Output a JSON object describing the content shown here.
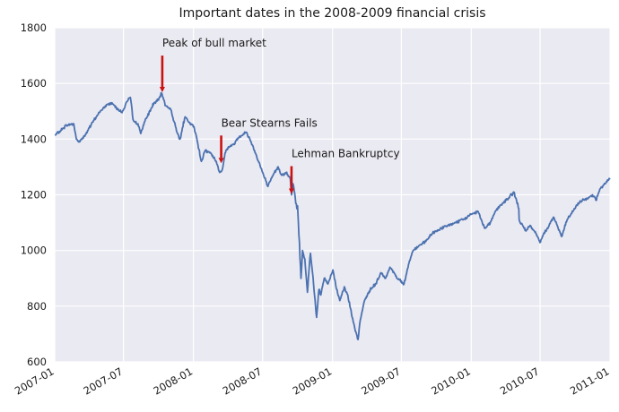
{
  "chart_data": {
    "type": "line",
    "title": "Important dates in the 2008-2009 financial crisis",
    "xlabel": "",
    "ylabel": "",
    "xlim": [
      "2007-01-01",
      "2011-01-01"
    ],
    "ylim": [
      600,
      1800
    ],
    "grid": true,
    "x_ticks": [
      "2007-01",
      "2007-07",
      "2008-01",
      "2008-07",
      "2009-01",
      "2009-07",
      "2010-01",
      "2010-07",
      "2011-01"
    ],
    "y_ticks": [
      600,
      800,
      1000,
      1200,
      1400,
      1600,
      1800
    ],
    "colors": {
      "background": "#EAEAF2",
      "line": "#4C72B0",
      "arrow": "#CC1111",
      "grid": "#FFFFFF"
    },
    "series": [
      {
        "x": [
          "2007-01-03",
          "2007-01-16",
          "2007-02-01",
          "2007-02-20",
          "2007-02-27",
          "2007-03-05",
          "2007-03-20",
          "2007-04-02",
          "2007-04-20",
          "2007-05-01",
          "2007-05-20",
          "2007-06-01",
          "2007-06-15",
          "2007-06-27",
          "2007-07-10",
          "2007-07-19",
          "2007-07-26",
          "2007-08-01",
          "2007-08-08",
          "2007-08-15",
          "2007-08-22",
          "2007-09-01",
          "2007-09-19",
          "2007-10-01",
          "2007-10-09",
          "2007-10-20",
          "2007-11-01",
          "2007-11-12",
          "2007-11-20",
          "2007-11-26",
          "2007-12-10",
          "2007-12-20",
          "2008-01-02",
          "2008-01-10",
          "2008-01-22",
          "2008-02-01",
          "2008-02-15",
          "2008-03-01",
          "2008-03-10",
          "2008-03-17",
          "2008-03-24",
          "2008-04-01",
          "2008-04-15",
          "2008-05-01",
          "2008-05-19",
          "2008-06-01",
          "2008-06-15",
          "2008-07-01",
          "2008-07-15",
          "2008-07-25",
          "2008-08-01",
          "2008-08-11",
          "2008-08-20",
          "2008-09-01",
          "2008-09-12",
          "2008-09-15",
          "2008-09-19",
          "2008-09-29",
          "2008-10-01",
          "2008-10-03",
          "2008-10-10",
          "2008-10-14",
          "2008-10-20",
          "2008-10-27",
          "2008-11-01",
          "2008-11-04",
          "2008-11-12",
          "2008-11-20",
          "2008-11-26",
          "2008-12-01",
          "2008-12-10",
          "2008-12-20",
          "2009-01-02",
          "2009-01-10",
          "2009-01-20",
          "2009-02-01",
          "2009-02-10",
          "2009-02-20",
          "2009-03-02",
          "2009-03-09",
          "2009-03-15",
          "2009-03-26",
          "2009-04-10",
          "2009-04-25",
          "2009-05-08",
          "2009-05-20",
          "2009-06-01",
          "2009-06-12",
          "2009-06-20",
          "2009-07-01",
          "2009-07-08",
          "2009-07-20",
          "2009-08-01",
          "2009-08-20",
          "2009-09-01",
          "2009-09-20",
          "2009-10-01",
          "2009-10-15",
          "2009-11-01",
          "2009-11-20",
          "2009-12-10",
          "2010-01-01",
          "2010-01-19",
          "2010-02-05",
          "2010-02-20",
          "2010-03-05",
          "2010-03-25",
          "2010-04-10",
          "2010-04-23",
          "2010-05-06",
          "2010-05-07",
          "2010-05-20",
          "2010-05-25",
          "2010-06-05",
          "2010-06-20",
          "2010-07-02",
          "2010-07-10",
          "2010-07-20",
          "2010-08-05",
          "2010-08-15",
          "2010-08-27",
          "2010-09-10",
          "2010-09-25",
          "2010-10-10",
          "2010-10-20",
          "2010-11-05",
          "2010-11-16",
          "2010-11-25",
          "2010-12-05",
          "2010-12-20",
          "2010-12-31"
        ],
        "values": [
          1415,
          1430,
          1450,
          1455,
          1400,
          1390,
          1410,
          1440,
          1480,
          1500,
          1525,
          1530,
          1510,
          1495,
          1535,
          1550,
          1470,
          1460,
          1455,
          1420,
          1450,
          1480,
          1530,
          1540,
          1565,
          1520,
          1510,
          1460,
          1420,
          1400,
          1480,
          1460,
          1445,
          1400,
          1320,
          1360,
          1350,
          1320,
          1280,
          1290,
          1350,
          1370,
          1380,
          1410,
          1425,
          1390,
          1340,
          1280,
          1230,
          1260,
          1280,
          1300,
          1270,
          1280,
          1255,
          1200,
          1240,
          1150,
          1160,
          1100,
          900,
          1000,
          970,
          850,
          950,
          990,
          880,
          760,
          860,
          840,
          900,
          880,
          930,
          870,
          820,
          870,
          840,
          770,
          710,
          680,
          750,
          820,
          860,
          880,
          920,
          900,
          940,
          920,
          900,
          890,
          880,
          950,
          1000,
          1020,
          1030,
          1060,
          1070,
          1080,
          1090,
          1100,
          1110,
          1130,
          1140,
          1080,
          1100,
          1140,
          1170,
          1190,
          1210,
          1150,
          1110,
          1080,
          1070,
          1090,
          1060,
          1030,
          1060,
          1080,
          1120,
          1090,
          1050,
          1110,
          1140,
          1170,
          1180,
          1190,
          1200,
          1180,
          1220,
          1240,
          1258
        ]
      }
    ],
    "annotations": [
      {
        "text": "Peak of bull market",
        "x": "2007-10-11",
        "y": 1565
      },
      {
        "text": "Bear Stearns Fails",
        "x": "2008-03-14",
        "y": 1310
      },
      {
        "text": "Lehman Bankruptcy",
        "x": "2008-09-15",
        "y": 1200
      }
    ]
  }
}
